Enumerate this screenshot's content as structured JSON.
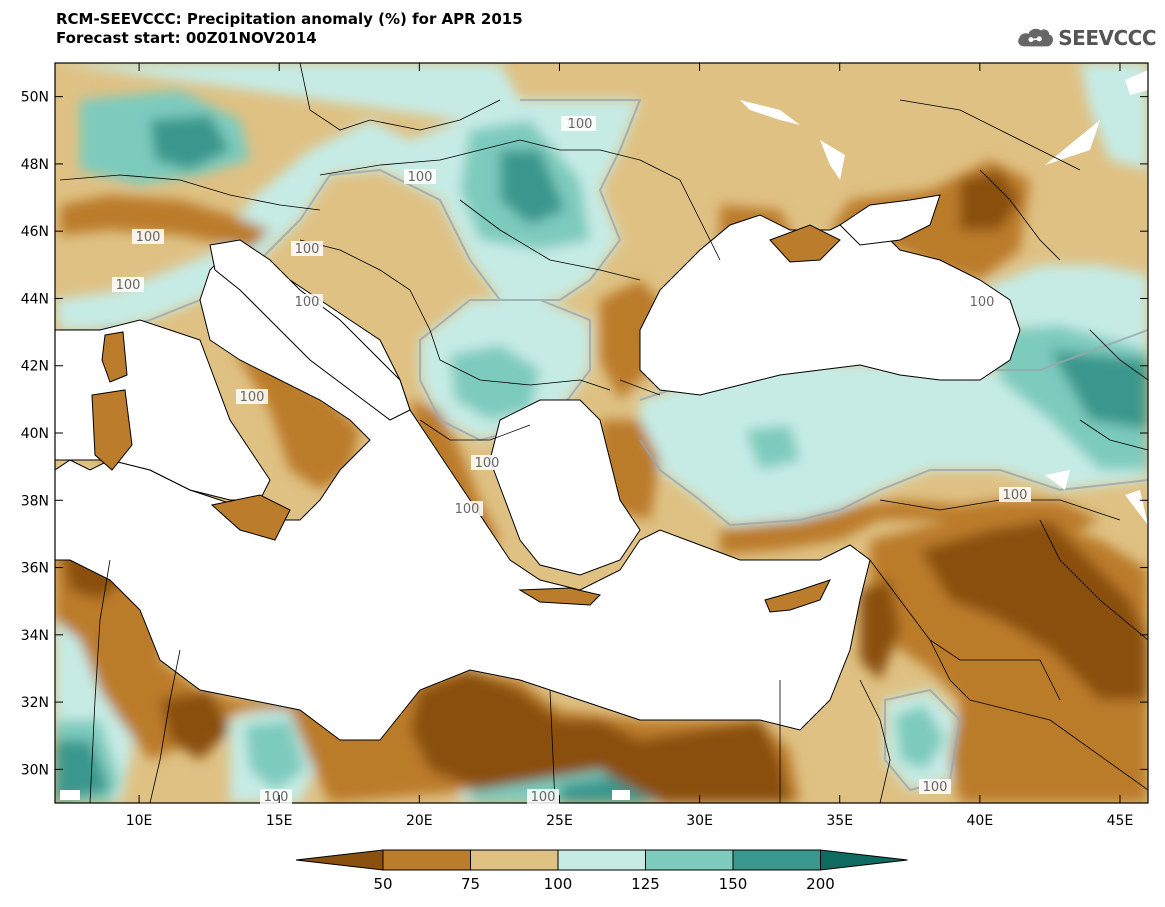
{
  "title": {
    "line1": "RCM-SEEVCCC: Precipitation anomaly (%) for APR 2015",
    "line2": "Forecast start: 00Z01NOV2014"
  },
  "logo": {
    "text": "SEEVCCC",
    "icon": "cloud-logo-icon"
  },
  "map": {
    "lon_range": [
      7,
      46
    ],
    "lat_range": [
      29,
      51
    ],
    "x_ticks": [
      "10E",
      "15E",
      "20E",
      "25E",
      "30E",
      "35E",
      "40E",
      "45E"
    ],
    "y_ticks": [
      "50N",
      "48N",
      "46N",
      "44N",
      "42N",
      "40N",
      "38N",
      "36N",
      "34N",
      "32N",
      "30N"
    ],
    "contour_labels": [
      "100",
      "100",
      "100",
      "100",
      "100",
      "100",
      "100",
      "100",
      "100",
      "100",
      "100",
      "100",
      "100",
      "100",
      "100"
    ]
  },
  "legend": {
    "levels": [
      "50",
      "75",
      "100",
      "125",
      "150",
      "200"
    ],
    "colors": [
      "#8a5010",
      "#bb7c2c",
      "#dfc184",
      "#c6ebe5",
      "#7dcbbd",
      "#3a978d",
      "#0f6a60"
    ]
  }
}
